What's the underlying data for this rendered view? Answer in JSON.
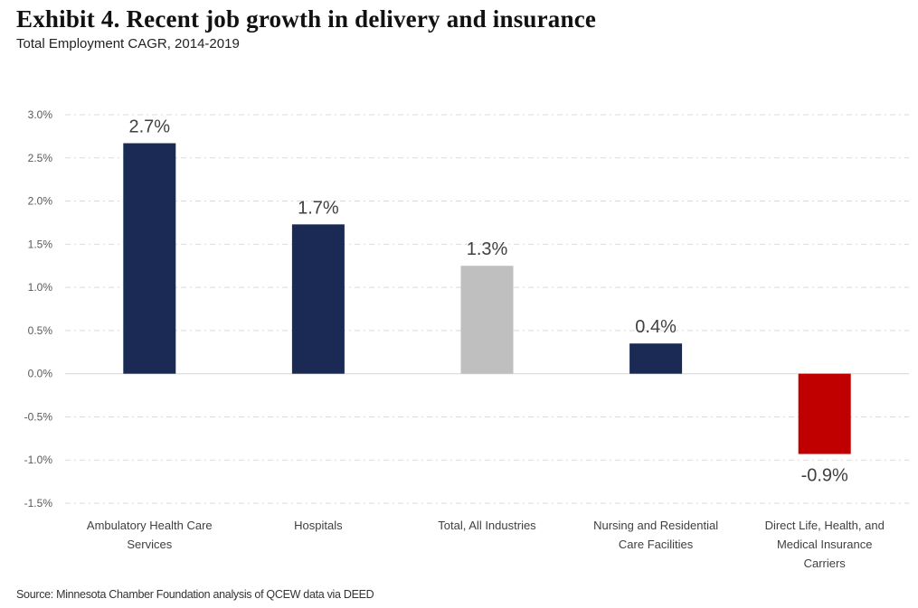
{
  "header": {
    "title": "Exhibit 4. Recent job growth in delivery and insurance",
    "subtitle": "Total Employment CAGR, 2014-2019"
  },
  "footer": {
    "source": "Source: Minnesota Chamber Foundation analysis of QCEW data via DEED"
  },
  "chart_data": {
    "type": "bar",
    "title": "Exhibit 4. Recent job growth in delivery and insurance",
    "subtitle": "Total Employment CAGR, 2014-2019",
    "xlabel": "",
    "ylabel": "",
    "ylim": [
      -1.5,
      3.0
    ],
    "yticks": [
      3.0,
      2.5,
      2.0,
      1.5,
      1.0,
      0.5,
      0.0,
      -0.5,
      -1.0,
      -1.5
    ],
    "ytick_labels": [
      "3.0%",
      "2.5%",
      "2.0%",
      "1.5%",
      "1.0%",
      "0.5%",
      "0.0%",
      "-0.5%",
      "-1.0%",
      "-1.5%"
    ],
    "grid": true,
    "legend": "none",
    "categories": [
      [
        "Ambulatory Health Care",
        "Services"
      ],
      [
        "Hospitals"
      ],
      [
        "Total, All Industries"
      ],
      [
        "Nursing and Residential",
        "Care Facilities"
      ],
      [
        "Direct Life, Health, and",
        "Medical Insurance",
        "Carriers"
      ]
    ],
    "values": [
      2.67,
      1.73,
      1.25,
      0.35,
      -0.93
    ],
    "data_labels": [
      "2.7%",
      "1.7%",
      "1.3%",
      "0.4%",
      "-0.9%"
    ],
    "colors": [
      "#1b2a55",
      "#1b2a55",
      "#bfbfbf",
      "#1b2a55",
      "#c00000"
    ],
    "source": "Source: Minnesota Chamber Foundation analysis of QCEW data via DEED"
  }
}
